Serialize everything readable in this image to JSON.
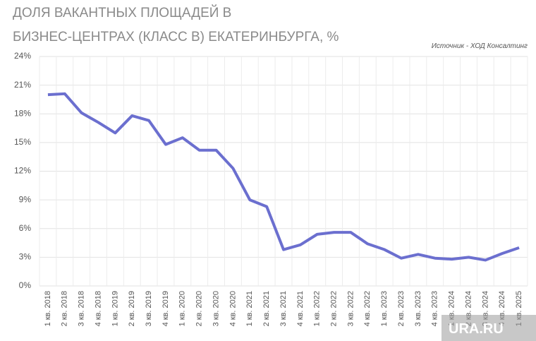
{
  "chart_data": {
    "type": "line",
    "title": [
      "ДОЛЯ ВАКАНТНЫХ ПЛОЩАДЕЙ В",
      "БИЗНЕС-ЦЕНТРАХ (КЛАСС В) ЕКАТЕРИНБУРГА, %"
    ],
    "source": "Источник - ХОД Консалтинг",
    "watermark": "URA.RU",
    "categories": [
      "1 кв. 2018",
      "2 кв. 2018",
      "3 кв. 2018",
      "4 кв. 2018",
      "1 кв. 2019",
      "2 кв. 2019",
      "3 кв. 2019",
      "4 кв. 2019",
      "1 кв. 2020",
      "2 кв. 2020",
      "3 кв. 2020",
      "4 кв. 2020",
      "1 кв. 2021",
      "2 кв. 2021",
      "3 кв. 2021",
      "4 кв. 2021",
      "1 кв. 2022",
      "2 кв. 2022",
      "3 кв. 2022",
      "4 кв. 2022",
      "1 кв. 2023",
      "2 кв. 2023",
      "3 кв. 2023",
      "4 кв. 2023",
      "1 кв. 2024",
      "2 кв. 2024",
      "3 кв. 2024",
      "4 кв. 2024",
      "1 кв. 2025"
    ],
    "series": [
      {
        "color": "#6b6fcf",
        "values": [
          20.0,
          20.1,
          18.1,
          17.1,
          16.0,
          17.8,
          17.3,
          14.8,
          15.5,
          14.2,
          14.2,
          12.3,
          9.0,
          8.3,
          3.8,
          4.3,
          5.4,
          5.6,
          5.6,
          4.4,
          3.8,
          2.9,
          3.3,
          2.9,
          2.8,
          3.0,
          2.7,
          3.4,
          4.0
        ]
      }
    ],
    "ylim": [
      0,
      24
    ],
    "yticks": [
      {
        "value": 0,
        "label": "0%"
      },
      {
        "value": 3,
        "label": "3%"
      },
      {
        "value": 6,
        "label": "6%"
      },
      {
        "value": 9,
        "label": "9%"
      },
      {
        "value": 12,
        "label": "12%"
      },
      {
        "value": 15,
        "label": "15%"
      },
      {
        "value": 18,
        "label": "18%"
      },
      {
        "value": 21,
        "label": "21%"
      },
      {
        "value": 24,
        "label": "24%"
      }
    ],
    "grid": true
  }
}
